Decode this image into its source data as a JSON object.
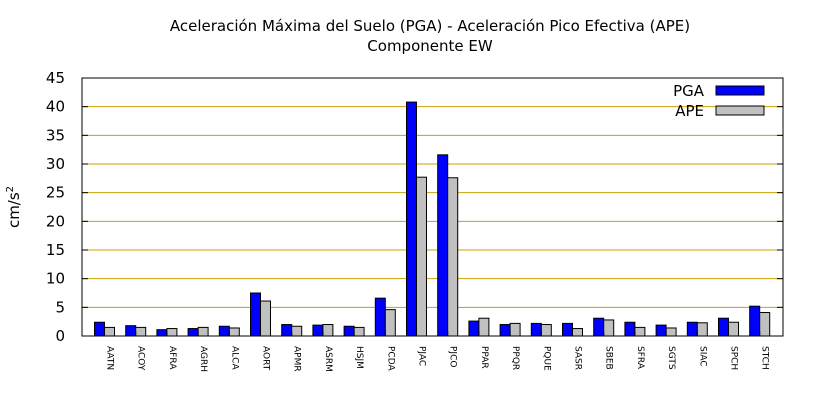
{
  "chart_data": {
    "type": "bar",
    "title": "Aceleración Máxima del Suelo (PGA) -  Aceleración Pico Efectiva (APE)",
    "subtitle": "Componente EW",
    "ylabel": "cm/s",
    "ylabel_sup": "2",
    "xlabel": "",
    "ylim": [
      0,
      45
    ],
    "yticks": [
      0,
      5,
      10,
      15,
      20,
      25,
      30,
      35,
      40,
      45
    ],
    "grid": "horizontal",
    "legend_position": "top-right",
    "categories": [
      "AATN",
      "ACOY",
      "AFRA",
      "AGRH",
      "ALCA",
      "AORT",
      "APMR",
      "ASRM",
      "HSJM",
      "PCDA",
      "PJAC",
      "PJCO",
      "PPAR",
      "PPQR",
      "PQUE",
      "SASR",
      "SBEB",
      "SFRA",
      "SGTS",
      "SIAC",
      "SPCH",
      "STCH"
    ],
    "series": [
      {
        "name": "PGA",
        "color": "#0000ff",
        "values": [
          2.4,
          1.8,
          1.1,
          1.3,
          1.7,
          7.5,
          2.0,
          1.9,
          1.7,
          6.6,
          40.8,
          31.6,
          2.6,
          2.0,
          2.2,
          2.2,
          3.1,
          2.4,
          1.9,
          2.4,
          3.1,
          5.2
        ]
      },
      {
        "name": "APE",
        "color": "#c0c0c0",
        "values": [
          1.5,
          1.5,
          1.3,
          1.5,
          1.4,
          6.1,
          1.7,
          2.0,
          1.5,
          4.6,
          27.7,
          27.6,
          3.1,
          2.2,
          2.0,
          1.3,
          2.8,
          1.5,
          1.4,
          2.3,
          2.4,
          4.1
        ]
      }
    ]
  }
}
